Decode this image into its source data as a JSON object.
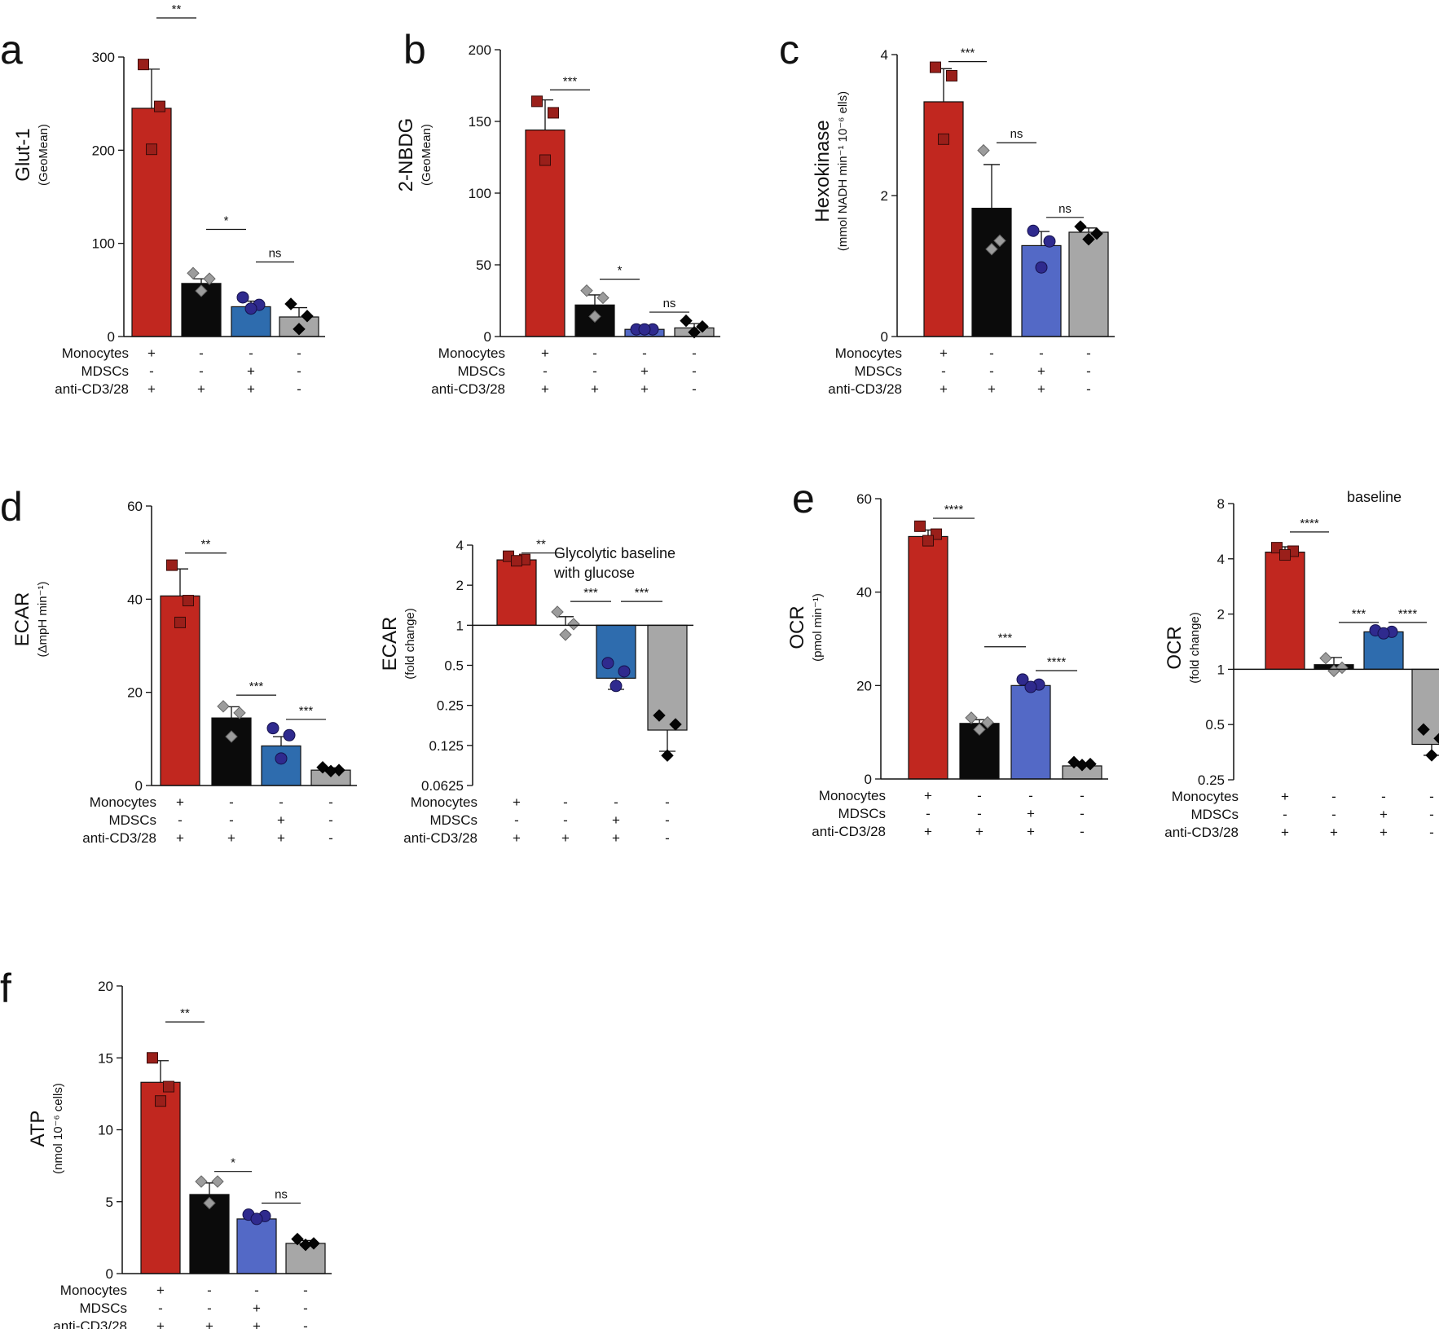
{
  "figure": {
    "conditions": {
      "row_labels": [
        "Monocytes",
        "MDSCs",
        "anti-CD3/28"
      ],
      "signs": [
        [
          "+",
          "-",
          "+"
        ],
        [
          "-",
          "-",
          "+"
        ],
        [
          "-",
          "+",
          "+"
        ],
        [
          "-",
          "-",
          "-"
        ]
      ]
    },
    "group_colors": [
      "#c1271f",
      "#0b0b0b",
      "#2e6cae",
      "#a7a7a7"
    ],
    "group_colors_alt": [
      "#c1271f",
      "#0b0b0b",
      "#5369c6",
      "#a7a7a7"
    ]
  },
  "chart_data": [
    {
      "id": "a",
      "panel_letter": "a",
      "type": "bar",
      "scale": "linear",
      "ylabel": "Glut-1",
      "ylabel_sub": "(GeoMean)",
      "ylim": [
        0,
        300
      ],
      "yticks": [
        0,
        100,
        200,
        300
      ],
      "ytick_labels": [
        "0",
        "100",
        "200",
        "300"
      ],
      "values": [
        245,
        57,
        32,
        21
      ],
      "errors": [
        42,
        5,
        6,
        10
      ],
      "points": [
        [
          292,
          247,
          201
        ],
        [
          68,
          62,
          49
        ],
        [
          42,
          34,
          30
        ],
        [
          35,
          22,
          8
        ]
      ],
      "markers": [
        "square",
        "diamond-light",
        "circle",
        "diamond-dark"
      ],
      "palette": "default",
      "sig": [
        {
          "from": 0,
          "to": 1,
          "label": "**",
          "y": 342
        },
        {
          "from": 1,
          "to": 2,
          "label": "*",
          "y": 115
        },
        {
          "from": 2,
          "to": 3,
          "label": "ns",
          "y": 80
        }
      ]
    },
    {
      "id": "b",
      "panel_letter": "b",
      "type": "bar",
      "scale": "linear",
      "ylabel": "2-NBDG",
      "ylabel_sub": "(GeoMean)",
      "ylim": [
        0,
        200
      ],
      "yticks": [
        0,
        50,
        100,
        150,
        200
      ],
      "ytick_labels": [
        "0",
        "50",
        "100",
        "150",
        "200"
      ],
      "values": [
        144,
        22,
        5,
        6
      ],
      "errors": [
        21,
        7,
        1,
        3
      ],
      "points": [
        [
          164,
          156,
          123
        ],
        [
          32,
          27,
          14
        ],
        [
          5,
          5,
          5
        ],
        [
          11,
          7,
          3
        ]
      ],
      "markers": [
        "square",
        "diamond-light",
        "circle",
        "diamond-dark"
      ],
      "palette": "alt",
      "sig": [
        {
          "from": 0,
          "to": 1,
          "label": "***",
          "y": 172
        },
        {
          "from": 1,
          "to": 2,
          "label": "*",
          "y": 40
        },
        {
          "from": 2,
          "to": 3,
          "label": "ns",
          "y": 17
        }
      ]
    },
    {
      "id": "c",
      "panel_letter": "c",
      "type": "bar",
      "scale": "linear",
      "ylabel": "Hexokinase",
      "ylabel_sub": "(mmol NADH min⁻¹ 10⁻⁶ ells)",
      "ylim": [
        0,
        4
      ],
      "yticks": [
        0,
        2,
        4
      ],
      "ytick_labels": [
        "0",
        "2",
        "4"
      ],
      "values": [
        3.33,
        1.82,
        1.29,
        1.48
      ],
      "errors": [
        0.47,
        0.62,
        0.2,
        0.06
      ],
      "points": [
        [
          3.82,
          3.7,
          2.8
        ],
        [
          2.64,
          1.36,
          1.24
        ],
        [
          1.5,
          1.35,
          0.98
        ],
        [
          1.56,
          1.46,
          1.38
        ]
      ],
      "markers": [
        "square",
        "diamond-light",
        "circle",
        "diamond-dark"
      ],
      "palette": "alt",
      "sig": [
        {
          "from": 0,
          "to": 1,
          "label": "***",
          "y": 3.9
        },
        {
          "from": 1,
          "to": 2,
          "label": "ns",
          "y": 2.75
        },
        {
          "from": 2,
          "to": 3,
          "label": "ns",
          "y": 1.69
        }
      ]
    },
    {
      "id": "d1",
      "panel_letter": "d",
      "type": "bar",
      "scale": "linear",
      "ylabel": "ECAR",
      "ylabel_sub": "(ΔmpH min⁻¹)",
      "ylim": [
        0,
        60
      ],
      "yticks": [
        0,
        20,
        40,
        60
      ],
      "ytick_labels": [
        "0",
        "20",
        "40",
        "60"
      ],
      "values": [
        40.7,
        14.5,
        8.5,
        3.3
      ],
      "errors": [
        5.8,
        2.4,
        2,
        0.5
      ],
      "points": [
        [
          47.3,
          39.7,
          35
        ],
        [
          17,
          15.6,
          10.5
        ],
        [
          12.3,
          10.8,
          5.8
        ],
        [
          3.9,
          3.3,
          3.1
        ]
      ],
      "markers": [
        "square",
        "diamond-light",
        "circle",
        "diamond-dark"
      ],
      "palette": "default",
      "sig": [
        {
          "from": 0,
          "to": 1,
          "label": "**",
          "y": 49.9
        },
        {
          "from": 1,
          "to": 2,
          "label": "***",
          "y": 19.4
        },
        {
          "from": 2,
          "to": 3,
          "label": "***",
          "y": 14.2
        }
      ]
    },
    {
      "id": "d2",
      "panel_letter": "",
      "type": "bar",
      "scale": "log2",
      "ylabel": "ECAR",
      "ylabel_sub": "(fold change)",
      "baseline": 1,
      "ylim": [
        0.0625,
        4
      ],
      "yticks": [
        0.0625,
        0.125,
        0.25,
        0.5,
        1,
        2,
        4
      ],
      "ytick_labels": [
        "0.0625",
        "0.125",
        "0.25",
        "0.5",
        "1",
        "2",
        "4"
      ],
      "values": [
        3.1,
        1,
        0.4,
        0.163
      ],
      "errors": [
        0.2,
        0.16,
        0.07,
        0.05
      ],
      "points": [
        [
          3.3,
          3.12,
          3.05
        ],
        [
          1.26,
          1.02,
          0.85
        ],
        [
          0.52,
          0.45,
          0.35
        ],
        [
          0.21,
          0.18,
          0.105
        ]
      ],
      "markers": [
        "square",
        "diamond-light",
        "circle",
        "diamond-dark"
      ],
      "palette": "default",
      "note": [
        "Glycolytic baseline",
        "with glucose"
      ],
      "sig": [
        {
          "from": 0,
          "to": 1,
          "label": "**",
          "y": 3.49
        },
        {
          "from": 1,
          "to": 2,
          "label": "***",
          "y": 1.51
        },
        {
          "from": 2,
          "to": 3,
          "label": "***",
          "y": 1.51
        }
      ]
    },
    {
      "id": "e1",
      "panel_letter": "e",
      "type": "bar",
      "scale": "linear",
      "ylabel": "OCR",
      "ylabel_sub": "(pmol min⁻¹)",
      "ylim": [
        0,
        60
      ],
      "yticks": [
        0,
        20,
        40,
        60
      ],
      "ytick_labels": [
        "0",
        "20",
        "40",
        "60"
      ],
      "values": [
        51.9,
        11.9,
        20,
        2.8
      ],
      "errors": [
        1.4,
        0.8,
        0.6,
        0.4
      ],
      "points": [
        [
          54.1,
          52.4,
          51
        ],
        [
          13.1,
          12.1,
          10.6
        ],
        [
          21.3,
          20.2,
          19.7
        ],
        [
          3.6,
          3.2,
          3
        ]
      ],
      "markers": [
        "square",
        "diamond-light",
        "circle",
        "diamond-dark"
      ],
      "palette": "alt",
      "sig": [
        {
          "from": 0,
          "to": 1,
          "label": "****",
          "y": 55.8
        },
        {
          "from": 1,
          "to": 2,
          "label": "***",
          "y": 28.3
        },
        {
          "from": 2,
          "to": 3,
          "label": "****",
          "y": 23.2
        }
      ]
    },
    {
      "id": "e2",
      "panel_letter": "",
      "type": "bar",
      "scale": "log2",
      "ylabel": "OCR",
      "ylabel_sub": "(fold change)",
      "baseline": 1,
      "ylim": [
        0.25,
        8
      ],
      "yticks": [
        0.25,
        0.5,
        1,
        2,
        4,
        8
      ],
      "ytick_labels": [
        "0.25",
        "0.5",
        "1",
        "2",
        "4",
        "8"
      ],
      "values": [
        4.35,
        1.06,
        1.6,
        0.39
      ],
      "errors": [
        0.3,
        0.1,
        0.05,
        0.05
      ],
      "points": [
        [
          4.6,
          4.4,
          4.2
        ],
        [
          1.15,
          1.02,
          0.98
        ],
        [
          1.63,
          1.6,
          1.57
        ],
        [
          0.47,
          0.42,
          0.34
        ]
      ],
      "markers": [
        "square",
        "diamond-light",
        "circle",
        "diamond-dark"
      ],
      "palette": "default",
      "note": [
        "baseline"
      ],
      "sig": [
        {
          "from": 0,
          "to": 1,
          "label": "****",
          "y": 5.6
        },
        {
          "from": 1,
          "to": 2,
          "label": "***",
          "y": 1.8
        },
        {
          "from": 2,
          "to": 3,
          "label": "****",
          "y": 1.8
        }
      ]
    },
    {
      "id": "f",
      "panel_letter": "f",
      "type": "bar",
      "scale": "linear",
      "ylabel": "ATP",
      "ylabel_sub": "(nmol 10⁻⁶ cells)",
      "ylim": [
        0,
        20
      ],
      "yticks": [
        0,
        5,
        10,
        15,
        20
      ],
      "ytick_labels": [
        "0",
        "5",
        "10",
        "15",
        "20"
      ],
      "values": [
        13.3,
        5.5,
        3.8,
        2.1
      ],
      "errors": [
        1.5,
        0.8,
        0.3,
        0.2
      ],
      "points": [
        [
          15,
          13,
          12
        ],
        [
          6.4,
          6.4,
          4.9
        ],
        [
          4.1,
          4,
          3.8
        ],
        [
          2.4,
          2.1,
          2
        ]
      ],
      "markers": [
        "square",
        "diamond-light",
        "circle",
        "diamond-dark"
      ],
      "palette": "alt",
      "sig": [
        {
          "from": 0,
          "to": 1,
          "label": "**",
          "y": 17.5
        },
        {
          "from": 1,
          "to": 2,
          "label": "*",
          "y": 7.1
        },
        {
          "from": 2,
          "to": 3,
          "label": "ns",
          "y": 4.9
        }
      ]
    }
  ]
}
